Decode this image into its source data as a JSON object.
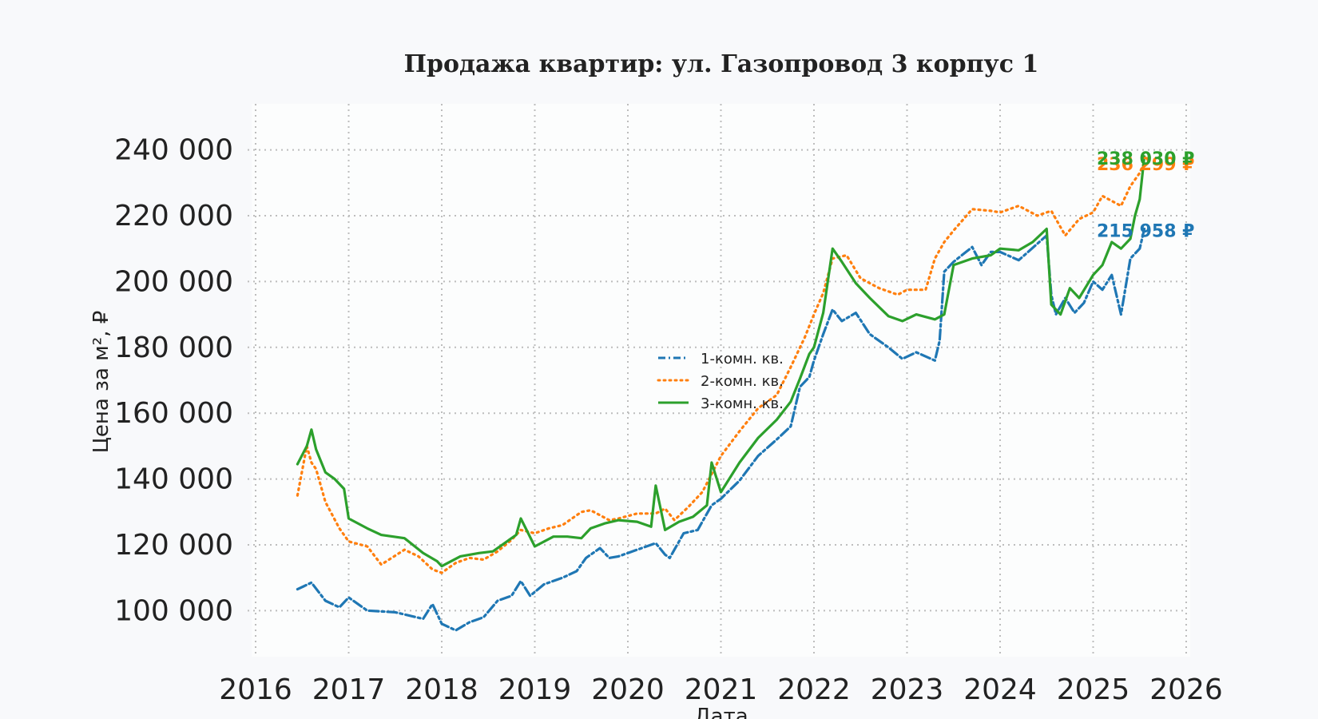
{
  "chart_data": {
    "type": "line",
    "title": "Продажа квартир: ул. Газопровод 3 корпус 1",
    "xlabel": "Дата",
    "ylabel": "Цена за м², ₽",
    "xlim": [
      2016,
      2026
    ],
    "ylim": [
      86000,
      254000
    ],
    "x_ticks": [
      "2016",
      "2017",
      "2018",
      "2019",
      "2020",
      "2021",
      "2022",
      "2023",
      "2024",
      "2025",
      "2026"
    ],
    "y_ticks": [
      {
        "value": 100000,
        "label": "100 000"
      },
      {
        "value": 120000,
        "label": "120 000"
      },
      {
        "value": 140000,
        "label": "140 000"
      },
      {
        "value": 160000,
        "label": "160 000"
      },
      {
        "value": 180000,
        "label": "180 000"
      },
      {
        "value": 200000,
        "label": "200 000"
      },
      {
        "value": 220000,
        "label": "220 000"
      },
      {
        "value": 240000,
        "label": "240 000"
      }
    ],
    "grid": true,
    "legend_position": "center",
    "series": [
      {
        "name": "1-комн. кв.",
        "color": "#1f77b4",
        "style": "dashdot",
        "end_label": "215 958 ₽",
        "x": [
          2016.45,
          2016.6,
          2016.75,
          2016.9,
          2017.0,
          2017.2,
          2017.5,
          2017.8,
          2017.9,
          2018.0,
          2018.15,
          2018.3,
          2018.45,
          2018.6,
          2018.75,
          2018.85,
          2018.95,
          2019.1,
          2019.3,
          2019.45,
          2019.55,
          2019.7,
          2019.8,
          2019.9,
          2020.1,
          2020.3,
          2020.4,
          2020.45,
          2020.6,
          2020.75,
          2020.9,
          2021.0,
          2021.2,
          2021.4,
          2021.6,
          2021.75,
          2021.85,
          2021.95,
          2022.0,
          2022.1,
          2022.2,
          2022.3,
          2022.45,
          2022.6,
          2022.8,
          2022.95,
          2023.1,
          2023.3,
          2023.35,
          2023.4,
          2023.5,
          2023.7,
          2023.8,
          2023.9,
          2024.0,
          2024.2,
          2024.5,
          2024.55,
          2024.6,
          2024.7,
          2024.8,
          2024.9,
          2025.0,
          2025.1,
          2025.2,
          2025.3,
          2025.4,
          2025.5,
          2025.55
        ],
        "y": [
          106500,
          108500,
          103000,
          101000,
          104000,
          100000,
          99500,
          97500,
          102000,
          96000,
          94000,
          96500,
          98000,
          103000,
          104500,
          109000,
          104500,
          108000,
          110000,
          112000,
          116000,
          119000,
          116000,
          116500,
          118500,
          120500,
          117000,
          116000,
          123500,
          124500,
          132000,
          134000,
          139500,
          147000,
          152000,
          156000,
          168000,
          171000,
          176000,
          184000,
          191500,
          188000,
          190500,
          184000,
          180000,
          176500,
          178500,
          176000,
          182000,
          203000,
          206000,
          210500,
          205000,
          209000,
          209000,
          206500,
          214000,
          196000,
          190000,
          195000,
          190500,
          193500,
          200000,
          197500,
          202000,
          190000,
          207000,
          210000,
          216000
        ]
      },
      {
        "name": "2-комн. кв.",
        "color": "#ff7f0e",
        "style": "dotted",
        "end_label": "236 299 ₽",
        "x": [
          2016.45,
          2016.55,
          2016.6,
          2016.65,
          2016.75,
          2016.9,
          2017.0,
          2017.2,
          2017.35,
          2017.6,
          2017.75,
          2017.9,
          2018.0,
          2018.15,
          2018.3,
          2018.45,
          2018.6,
          2018.75,
          2018.85,
          2019.0,
          2019.15,
          2019.3,
          2019.5,
          2019.6,
          2019.7,
          2019.8,
          2019.9,
          2020.1,
          2020.3,
          2020.4,
          2020.5,
          2020.65,
          2020.8,
          2020.9,
          2021.0,
          2021.2,
          2021.4,
          2021.6,
          2021.75,
          2021.9,
          2022.0,
          2022.1,
          2022.2,
          2022.35,
          2022.5,
          2022.7,
          2022.9,
          2023.0,
          2023.2,
          2023.3,
          2023.4,
          2023.5,
          2023.7,
          2023.9,
          2024.0,
          2024.2,
          2024.4,
          2024.55,
          2024.7,
          2024.85,
          2025.0,
          2025.1,
          2025.3,
          2025.4,
          2025.5,
          2025.55
        ],
        "y": [
          135000,
          150000,
          145000,
          143000,
          133000,
          125000,
          121000,
          119500,
          114000,
          118500,
          116500,
          112500,
          111500,
          114500,
          116000,
          115500,
          118000,
          121500,
          124500,
          123500,
          125000,
          126000,
          130000,
          130500,
          129000,
          127500,
          128000,
          129500,
          129500,
          131000,
          127500,
          131500,
          136000,
          141500,
          147000,
          154500,
          161500,
          165500,
          174000,
          183000,
          190000,
          196500,
          207000,
          208000,
          201000,
          198000,
          196000,
          197500,
          197500,
          207000,
          212000,
          215500,
          222000,
          221500,
          221000,
          223000,
          220000,
          221500,
          214000,
          219000,
          221000,
          226000,
          223000,
          229000,
          233000,
          236300
        ]
      },
      {
        "name": "3-комн. кв.",
        "color": "#2ca02c",
        "style": "solid",
        "end_label": "238 030 ₽",
        "x": [
          2016.45,
          2016.55,
          2016.6,
          2016.65,
          2016.75,
          2016.85,
          2016.95,
          2017.0,
          2017.2,
          2017.35,
          2017.6,
          2017.8,
          2017.95,
          2018.0,
          2018.2,
          2018.4,
          2018.55,
          2018.7,
          2018.8,
          2018.85,
          2019.0,
          2019.2,
          2019.35,
          2019.5,
          2019.6,
          2019.75,
          2019.9,
          2020.1,
          2020.25,
          2020.3,
          2020.4,
          2020.55,
          2020.7,
          2020.85,
          2020.9,
          2021.0,
          2021.2,
          2021.4,
          2021.6,
          2021.75,
          2021.85,
          2021.95,
          2022.0,
          2022.1,
          2022.2,
          2022.3,
          2022.45,
          2022.6,
          2022.8,
          2022.95,
          2023.1,
          2023.3,
          2023.4,
          2023.5,
          2023.7,
          2023.9,
          2024.0,
          2024.2,
          2024.35,
          2024.5,
          2024.55,
          2024.65,
          2024.75,
          2024.85,
          2025.0,
          2025.1,
          2025.2,
          2025.3,
          2025.4,
          2025.45,
          2025.5,
          2025.55
        ],
        "y": [
          144500,
          150000,
          155000,
          149000,
          142000,
          140000,
          137000,
          128000,
          125000,
          123000,
          122000,
          117500,
          115000,
          113500,
          116500,
          117500,
          118000,
          121000,
          123000,
          128000,
          119500,
          122500,
          122500,
          122000,
          125000,
          126500,
          127500,
          127000,
          125500,
          138000,
          124500,
          127000,
          128500,
          132000,
          145000,
          136000,
          145000,
          152500,
          158000,
          163500,
          170500,
          178000,
          180000,
          190500,
          210000,
          206000,
          199500,
          195000,
          189500,
          188000,
          190000,
          188500,
          190000,
          205000,
          207000,
          208000,
          210000,
          209500,
          212000,
          216000,
          193000,
          190000,
          198000,
          195000,
          202000,
          205000,
          212000,
          210000,
          213000,
          220000,
          225000,
          238000
        ]
      }
    ]
  }
}
